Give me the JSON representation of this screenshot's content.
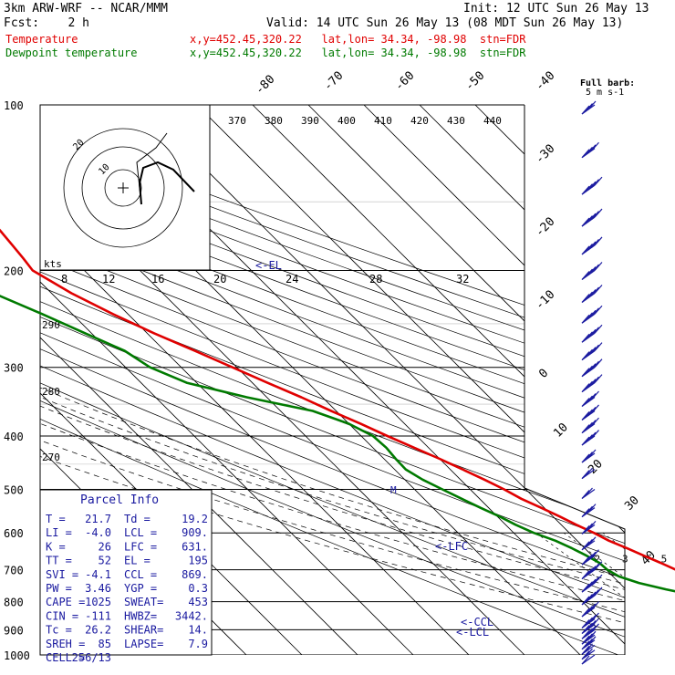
{
  "header": {
    "model": "3km ARW-WRF -- NCAR/MMM",
    "init": "Init: 12 UTC Sun 26 May 13",
    "fcst": "Fcst:    2 h",
    "valid": "Valid: 14 UTC Sun 26 May 13 (08 MDT Sun 26 May 13)",
    "temp_label": "Temperature",
    "temp_info": "x,y=452.45,320.22   lat,lon= 34.34, -98.98  stn=FDR",
    "dew_label": "Dewpoint temperature",
    "dew_info": "x,y=452.45,320.22   lat,lon= 34.34, -98.98  stn=FDR"
  },
  "colors": {
    "temperature": "#e00000",
    "dewpoint": "#007a00",
    "wind": "#1a1aa0",
    "grid": "#000000"
  },
  "chart_data": {
    "type": "skew-t log-p sounding",
    "pressure_levels": [
      "100",
      "200",
      "300",
      "400",
      "500",
      "600",
      "700",
      "800",
      "900",
      "1000"
    ],
    "isotherm_labels": [
      "-80",
      "-70",
      "-60",
      "-50",
      "-40",
      "-30",
      "-20",
      "-10",
      "0",
      "10",
      "20",
      "30",
      "40"
    ],
    "theta_labels": [
      "370",
      "380",
      "390",
      "400",
      "410",
      "420",
      "430",
      "440"
    ],
    "theta_left_labels": [
      "290",
      "280",
      "270"
    ],
    "hodo_kts_label": "kts",
    "hodo_speed_labels": [
      "8",
      "12",
      "16",
      "20",
      "24",
      "28",
      "32"
    ],
    "mixing_ratio_labels": [
      "2",
      "3",
      "5",
      "8",
      "12",
      "20"
    ],
    "hodo_ring_labels": [
      "20",
      "10"
    ],
    "level_marks": {
      "el": "<-EL",
      "lfc": "<-LFC",
      "ccl": "<-CCL",
      "lcl": "<-LCL",
      "m": "M"
    },
    "barb_legend": [
      "Full barb:",
      "5 m s-1"
    ],
    "temperature": {
      "p": [
        1000,
        980,
        960,
        940,
        920,
        900,
        880,
        860,
        840,
        820,
        800,
        780,
        760,
        740,
        720,
        700,
        680,
        660,
        640,
        620,
        600,
        580,
        560,
        540,
        520,
        500,
        480,
        460,
        440,
        420,
        400,
        380,
        360,
        340,
        320,
        300,
        280,
        260,
        240,
        220,
        200,
        190,
        180,
        170,
        160,
        150,
        140,
        130,
        120,
        110,
        100
      ],
      "t": [
        21.7,
        20.0,
        20.3,
        19.0,
        17.3,
        16.2,
        15.4,
        14.0,
        12.6,
        11.2,
        9.7,
        8.6,
        7.2,
        5.7,
        4.3,
        2.5,
        1.0,
        -0.7,
        -2.4,
        -4.3,
        -5.6,
        -7.3,
        -8.8,
        -10.6,
        -12.5,
        -13.9,
        -15.7,
        -17.8,
        -20.0,
        -22.6,
        -25.3,
        -27.9,
        -30.9,
        -33.8,
        -37.3,
        -40.8,
        -44.6,
        -48.8,
        -52.7,
        -56.4,
        -59.3,
        -58.8,
        -58.4,
        -58.0,
        -57.6,
        -57.2,
        -56.8,
        -57.0,
        -57.3,
        -57.6,
        -58.2
      ]
    },
    "dewpoint": {
      "p": [
        1000,
        980,
        960,
        940,
        920,
        900,
        880,
        860,
        840,
        820,
        800,
        780,
        760,
        740,
        720,
        700,
        680,
        660,
        640,
        620,
        600,
        580,
        560,
        540,
        520,
        500,
        480,
        460,
        440,
        420,
        400,
        380,
        360,
        340,
        320,
        300,
        280,
        260,
        240,
        220,
        200,
        190,
        180,
        170,
        160,
        150,
        140,
        130,
        120,
        110,
        100
      ],
      "t": [
        19.2,
        17.5,
        16.5,
        16.5,
        15.5,
        14.5,
        13.6,
        12.7,
        11.6,
        9.1,
        6.4,
        1.5,
        -2.8,
        -6.5,
        -8.9,
        -9.8,
        -10.0,
        -11.0,
        -12.3,
        -13.9,
        -16.4,
        -18.2,
        -19.6,
        -21.5,
        -23.2,
        -25.0,
        -26.8,
        -28.0,
        -27.9,
        -27.6,
        -27.9,
        -30.0,
        -34.2,
        -43.6,
        -51.8,
        -55.6,
        -57.2,
        -61.2,
        -65.4,
        -70.4,
        -73.4,
        -74.3,
        -74.8,
        -74.7,
        -74.6,
        -74.3,
        -74.6,
        -74.9,
        -75.0,
        -75.6,
        -77.5
      ]
    },
    "wind_barbs": {
      "p": [
        100,
        120,
        140,
        160,
        180,
        200,
        220,
        240,
        260,
        280,
        300,
        320,
        340,
        360,
        380,
        400,
        430,
        460,
        500,
        540,
        580,
        620,
        660,
        700,
        740,
        780,
        820,
        860,
        880,
        900,
        920,
        940,
        960,
        980,
        1000
      ],
      "speed_knots": [
        30,
        40,
        45,
        50,
        55,
        55,
        55,
        50,
        50,
        50,
        45,
        45,
        40,
        40,
        35,
        35,
        25,
        20,
        20,
        25,
        25,
        30,
        40,
        45,
        45,
        45,
        40,
        40,
        35,
        35,
        30,
        25,
        20,
        15,
        10
      ]
    },
    "indices": [
      [
        "T  =",
        "21.7",
        "Td =",
        "19.2"
      ],
      [
        "LI =",
        "-4.0",
        "LCL =",
        "909."
      ],
      [
        "K  =",
        "26",
        "LFC =",
        "631."
      ],
      [
        "TT =",
        "52",
        "EL  =",
        "195"
      ],
      [
        "SVI =",
        "-4.1",
        "CCL =",
        "869."
      ],
      [
        "PW =",
        "3.46",
        "YGP =",
        "0.3"
      ],
      [
        "CAPE =",
        "1025",
        "SWEAT=",
        "453"
      ],
      [
        "CIN =",
        "-111",
        "HWBZ=",
        "3442."
      ],
      [
        "Tc =",
        "26.2",
        "SHEAR=",
        "14."
      ],
      [
        "SREH =",
        "85",
        "LAPSE=",
        "7.9"
      ],
      [
        "CELL =",
        "256/13",
        "",
        ""
      ]
    ],
    "indices_title": "Parcel Info"
  }
}
